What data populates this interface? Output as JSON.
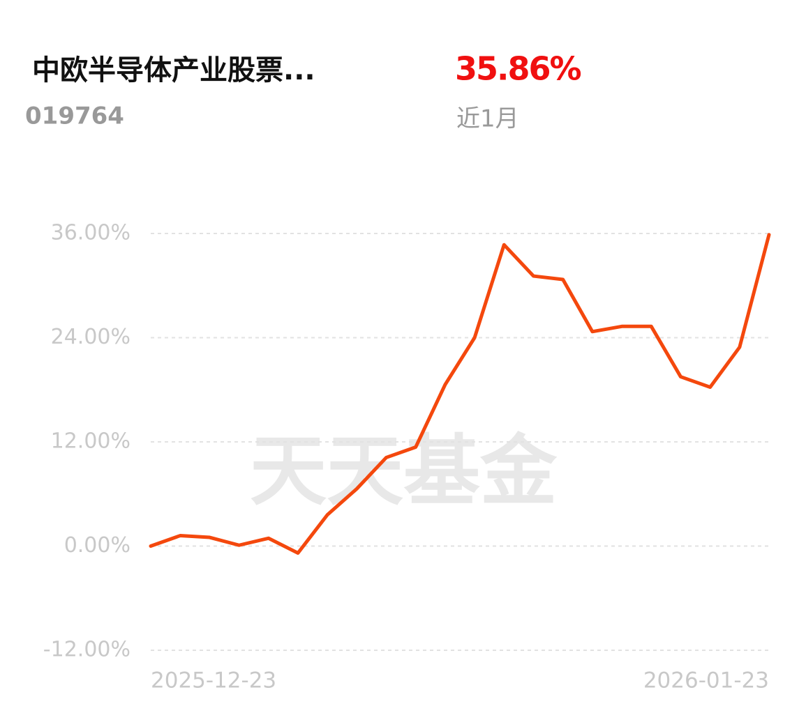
{
  "header": {
    "title": "中欧半导体产业股票...",
    "code": "019764",
    "return": "35.86%",
    "period": "近1月"
  },
  "watermark": "天天基金",
  "chart_data": {
    "type": "line",
    "categories": [
      "2025-12-23",
      null,
      null,
      null,
      null,
      null,
      null,
      null,
      null,
      null,
      null,
      null,
      null,
      null,
      null,
      null,
      null,
      null,
      null,
      null,
      null,
      "2026-01-23"
    ],
    "series": [
      {
        "color": "#f4480d",
        "values": [
          0,
          1.2,
          1.0,
          0.1,
          0.9,
          -0.8,
          3.6,
          6.6,
          10.2,
          11.4,
          18.6,
          24.0,
          34.7,
          31.1,
          30.7,
          24.7,
          25.3,
          25.3,
          19.5,
          18.3,
          22.9,
          35.86
        ]
      }
    ],
    "ylim": [
      -12,
      36
    ],
    "yticks": [
      {
        "value": -12,
        "label": "-12.00%"
      },
      {
        "value": 0,
        "label": "0.00%"
      },
      {
        "value": 12,
        "label": "12.00%"
      },
      {
        "value": 24,
        "label": "24.00%"
      },
      {
        "value": 36,
        "label": "36.00%"
      }
    ],
    "grid": true
  }
}
